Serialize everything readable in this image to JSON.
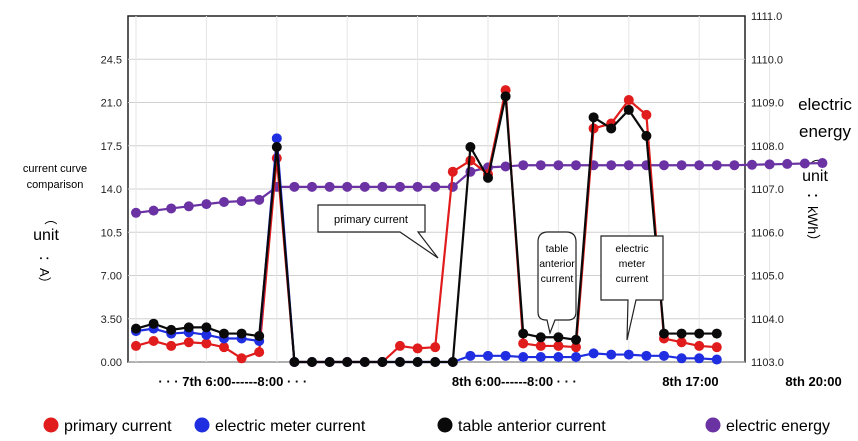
{
  "chart_data": {
    "type": "line",
    "left_axis": {
      "ticks": [
        "0.00",
        "3.50",
        "7.00",
        "10.5",
        "14.0",
        "17.5",
        "21.0",
        "24.5"
      ],
      "ylim": [
        0,
        28
      ],
      "label_lines": [
        "current curve",
        "comparison"
      ],
      "unit_open": "（",
      "unit_text": "unit",
      "unit_sym": "：A）"
    },
    "right_axis": {
      "ticks": [
        "1103.0",
        "1104.0",
        "1105.0",
        "1106.0",
        "1107.0",
        "1108.0",
        "1109.0",
        "1110.0",
        "1111.0"
      ],
      "ylim": [
        1103,
        1111
      ],
      "label_lines": [
        "electric",
        "energy"
      ],
      "unit_open": "（",
      "unit_text": "unit",
      "unit_sym": "：kWh）"
    },
    "x_labels": [
      {
        "text": "· · ·   7th   6:00------8:00   · · ·",
        "at": 5.5
      },
      {
        "text": "8th   6:00------8:00   · · ·",
        "at": 21.5
      },
      {
        "text": "8th  17:00",
        "at": 31.5
      },
      {
        "text": "8th  20:00",
        "at": 38.5
      }
    ],
    "x": [
      0,
      1,
      2,
      3,
      4,
      5,
      6,
      7,
      8,
      9,
      10,
      11,
      12,
      13,
      14,
      15,
      16,
      17,
      18,
      19,
      20,
      21,
      22,
      23,
      24,
      25,
      26,
      27,
      28,
      29,
      30,
      31,
      32,
      33,
      34,
      35,
      36,
      37,
      38,
      39
    ],
    "series": [
      {
        "name": "primary current",
        "color": "#e01c1c",
        "values": [
          1.3,
          1.7,
          1.3,
          1.6,
          1.5,
          1.2,
          0.3,
          0.8,
          16.5,
          0,
          0,
          0,
          0,
          0,
          0,
          1.3,
          1.1,
          1.2,
          15.4,
          16.3,
          15.2,
          22.0,
          1.5,
          1.3,
          1.3,
          1.2,
          18.9,
          19.3,
          21.2,
          20.0,
          1.9,
          1.6,
          1.3,
          1.2,
          null,
          null,
          null,
          null,
          null,
          null
        ]
      },
      {
        "name": "electric meter current",
        "color": "#1f2ee0",
        "values": [
          2.5,
          2.7,
          2.3,
          2.4,
          2.2,
          1.9,
          1.9,
          1.7,
          18.1,
          0,
          0,
          0,
          0,
          0,
          0,
          0,
          0,
          0,
          0,
          0.5,
          0.5,
          0.5,
          0.4,
          0.4,
          0.4,
          0.4,
          0.7,
          0.6,
          0.6,
          0.5,
          0.5,
          0.3,
          0.3,
          0.2,
          null,
          null,
          null,
          null,
          null,
          null
        ]
      },
      {
        "name": "table anterior current",
        "color": "#0a0a0a",
        "values": [
          2.7,
          3.1,
          2.6,
          2.8,
          2.8,
          2.3,
          2.3,
          2.1,
          17.4,
          0,
          0,
          0,
          0,
          0,
          0,
          0,
          0,
          0,
          0,
          17.4,
          14.9,
          21.5,
          2.3,
          2.0,
          2.0,
          1.8,
          19.8,
          18.9,
          20.4,
          18.3,
          2.3,
          2.3,
          2.3,
          2.3,
          null,
          null,
          null,
          null,
          null,
          null
        ]
      }
    ],
    "energy_series": {
      "name": "electric energy",
      "color": "#6a32a3",
      "values": [
        1106.45,
        1106.5,
        1106.55,
        1106.6,
        1106.65,
        1106.7,
        1106.72,
        1106.75,
        1107.05,
        1107.05,
        1107.05,
        1107.05,
        1107.05,
        1107.05,
        1107.05,
        1107.05,
        1107.05,
        1107.05,
        1107.05,
        1107.4,
        1107.5,
        1107.52,
        1107.55,
        1107.55,
        1107.55,
        1107.55,
        1107.55,
        1107.55,
        1107.55,
        1107.55,
        1107.55,
        1107.55,
        1107.55,
        1107.55,
        1107.55,
        1107.56,
        1107.57,
        1107.58,
        1107.59,
        1107.6
      ]
    },
    "callouts": [
      {
        "lines": [
          "primary current"
        ]
      },
      {
        "lines": [
          "table",
          "anterior",
          "current"
        ]
      },
      {
        "lines": [
          "electric",
          "meter",
          "current"
        ]
      }
    ],
    "legend": [
      {
        "label": "primary current",
        "color": "#e01c1c"
      },
      {
        "label": "electric meter current",
        "color": "#1f2ee0"
      },
      {
        "label": "table anterior current",
        "color": "#0a0a0a"
      },
      {
        "label": "electric energy",
        "color": "#6a32a3"
      }
    ],
    "grid": true,
    "legend_position": "bottom"
  }
}
